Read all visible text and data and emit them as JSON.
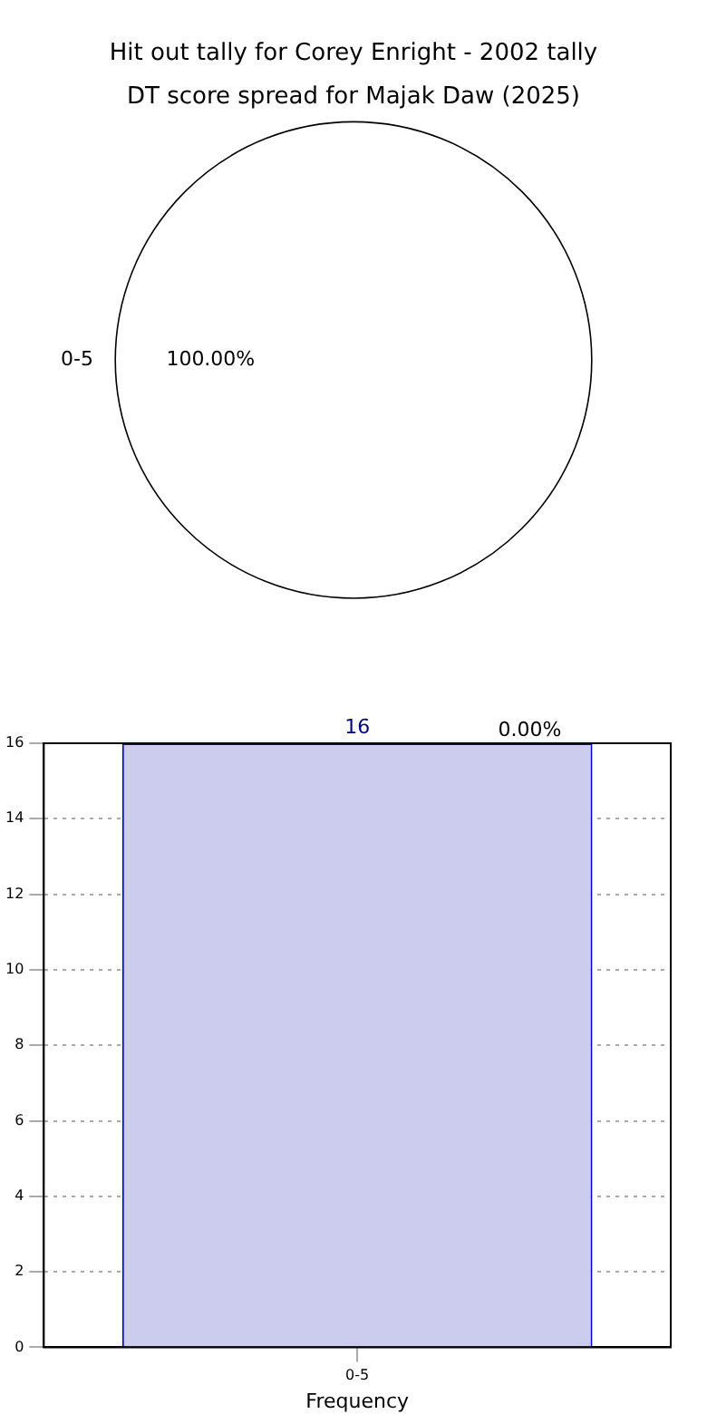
{
  "chart_data": [
    {
      "type": "pie",
      "title": "Hit out tally for Corey Enright - 2002 tally",
      "subtitle": "DT score spread for Majak Daw (2025)",
      "categories": [
        "0-5"
      ],
      "values": [
        100
      ],
      "colors": [
        "#ffffff"
      ],
      "value_labels": [
        "100.00%"
      ],
      "legend": false
    },
    {
      "type": "bar",
      "xlabel": "Frequency",
      "categories": [
        "0-5"
      ],
      "values": [
        16
      ],
      "color": "#ccccee",
      "ylim": [
        0,
        16
      ],
      "yticks": [
        0,
        2,
        4,
        6,
        8,
        10,
        12,
        14,
        16
      ],
      "grid": true,
      "data_labels": true,
      "legend": false,
      "annotations": [
        "0.00%"
      ]
    }
  ]
}
